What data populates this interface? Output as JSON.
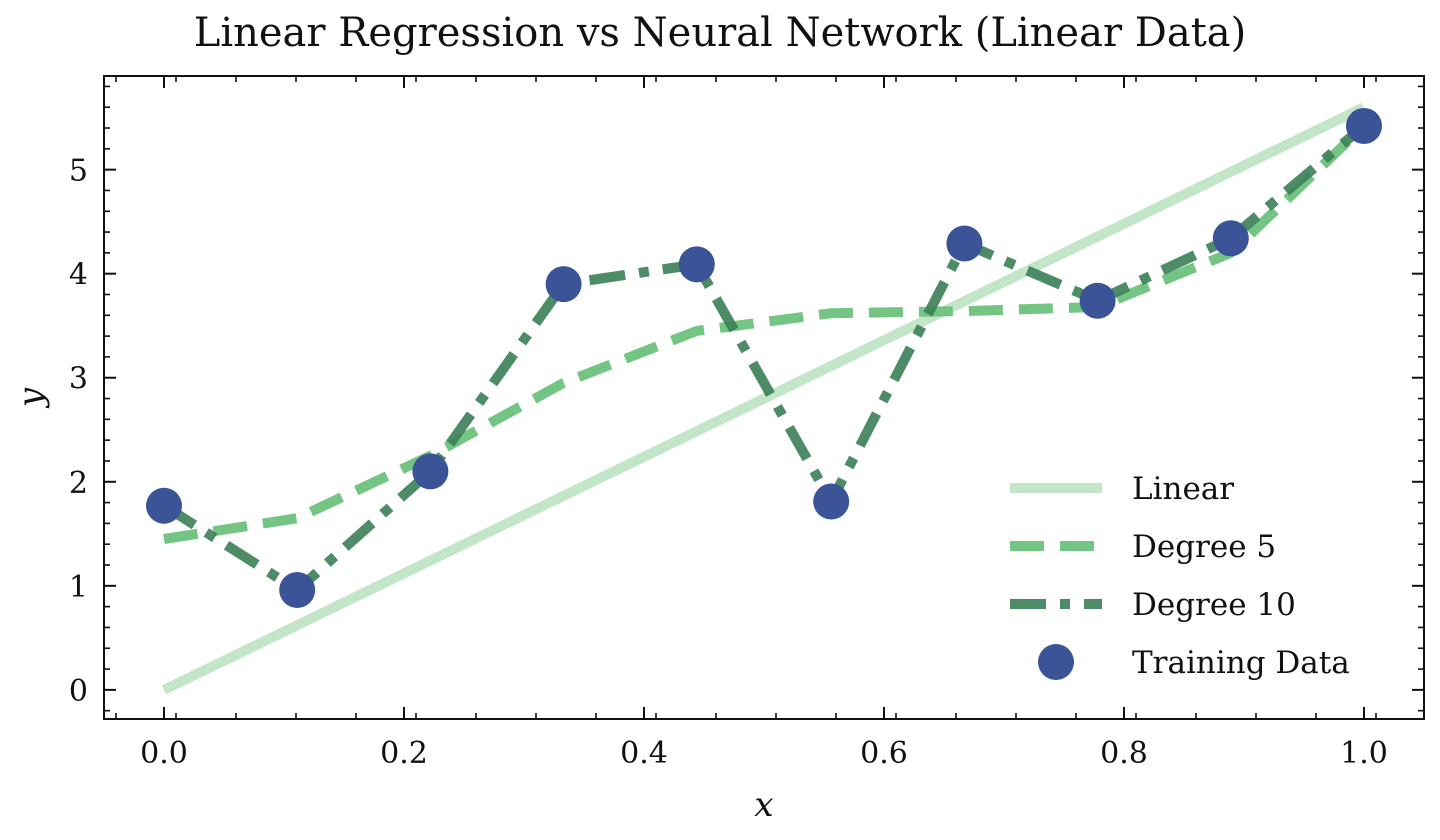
{
  "chart_data": {
    "type": "line",
    "title": "Linear Regression vs Neural Network (Linear Data)",
    "xlabel": "x",
    "ylabel": "y",
    "xlim": [
      -0.05,
      1.05
    ],
    "ylim": [
      -0.28,
      5.9
    ],
    "xticks": [
      0.0,
      0.2,
      0.4,
      0.6,
      0.8,
      1.0
    ],
    "xtick_labels": [
      "0.0",
      "0.2",
      "0.4",
      "0.6",
      "0.8",
      "1.0"
    ],
    "yticks": [
      0,
      1,
      2,
      3,
      4,
      5
    ],
    "ytick_labels": [
      "0",
      "1",
      "2",
      "3",
      "4",
      "5"
    ],
    "legend_position": "lower-right",
    "grid": false,
    "series": [
      {
        "name": "Linear",
        "color": "#c3e6c9",
        "style": "solid",
        "x": [
          0.0,
          1.0
        ],
        "y": [
          0.0,
          5.6
        ]
      },
      {
        "name": "Degree 5",
        "color": "#74c584",
        "style": "dashed",
        "x": [
          0.0,
          0.111,
          0.222,
          0.333,
          0.444,
          0.556,
          0.667,
          0.778,
          0.889,
          1.0
        ],
        "y": [
          1.45,
          1.65,
          2.25,
          2.95,
          3.45,
          3.62,
          3.64,
          3.68,
          4.2,
          5.42
        ]
      },
      {
        "name": "Degree 10",
        "color": "#3b7f58",
        "style": "dashdot",
        "x": [
          0.0,
          0.111,
          0.222,
          0.333,
          0.444,
          0.556,
          0.667,
          0.778,
          0.889,
          1.0
        ],
        "y": [
          1.77,
          0.96,
          2.1,
          3.9,
          4.09,
          1.81,
          4.29,
          3.74,
          4.34,
          5.42
        ]
      },
      {
        "name": "Training Data",
        "color": "#3a5497",
        "style": "markers",
        "x": [
          0.0,
          0.111,
          0.222,
          0.333,
          0.444,
          0.556,
          0.667,
          0.778,
          0.889,
          1.0
        ],
        "y": [
          1.77,
          0.96,
          2.1,
          3.9,
          4.09,
          1.81,
          4.29,
          3.74,
          4.34,
          5.42
        ]
      }
    ]
  }
}
